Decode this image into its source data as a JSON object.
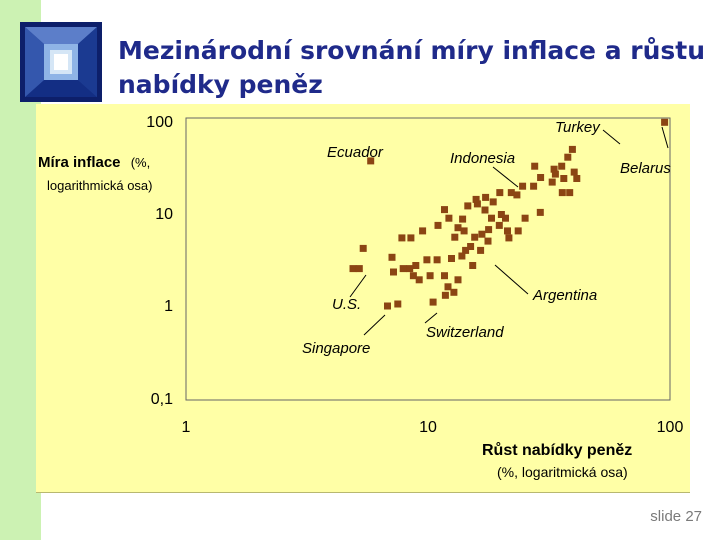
{
  "slide": {
    "title_line1": "Mezinárodní srovnání míry inflace a růstu",
    "title_line2": "nabídky peněz",
    "slide_number": "slide 27",
    "colors": {
      "title": "#1f2a8a",
      "left_strip": "#ccf2b3",
      "plot_background": "#ffffa6",
      "marker": "#8b4513"
    }
  },
  "chart_data": {
    "type": "scatter",
    "x_scale": "log",
    "y_scale": "log",
    "xlim": [
      1,
      100
    ],
    "ylim": [
      0.1,
      100
    ],
    "x_ticks": [
      "1",
      "10",
      "100"
    ],
    "y_ticks": [
      "100",
      "10",
      "1",
      "0,1"
    ],
    "ylabel_bold": "Míra inflace",
    "ylabel_rest_1": "(%,",
    "ylabel_rest_2": "logarithmická osa)",
    "xlabel_bold": "Růst nabídky peněz",
    "xlabel_rest": "(%, logaritmická osa)",
    "grid": false,
    "annotations": [
      {
        "label": "Turkey",
        "x": 95,
        "y": 90
      },
      {
        "label": "Ecuador",
        "x": 5.8,
        "y": 35
      },
      {
        "label": "Indonesia",
        "x": 17.5,
        "y": 20
      },
      {
        "label": "Belarus",
        "x": 95,
        "y": 90
      },
      {
        "label": "Argentina",
        "x": 13,
        "y": 2.2
      },
      {
        "label": "U.S.",
        "x": 5.5,
        "y": 2.5
      },
      {
        "label": "Singapore",
        "x": 7.5,
        "y": 1.0
      },
      {
        "label": "Switzerland",
        "x": 10.5,
        "y": 1.1
      }
    ],
    "points": [
      [
        95,
        90
      ],
      [
        5.8,
        35
      ],
      [
        4.9,
        2.5
      ],
      [
        5.2,
        2.5
      ],
      [
        5.4,
        4.1
      ],
      [
        7.5,
        1.05
      ],
      [
        10.5,
        1.1
      ],
      [
        6.8,
        1.0
      ],
      [
        7.8,
        5.3
      ],
      [
        8.5,
        5.3
      ],
      [
        9.5,
        6.3
      ],
      [
        11,
        7.2
      ],
      [
        12.2,
        8.6
      ],
      [
        13.3,
        6.8
      ],
      [
        14.1,
        6.3
      ],
      [
        15.6,
        5.4
      ],
      [
        16.7,
        5.8
      ],
      [
        17.7,
        4.9
      ],
      [
        15,
        4.3
      ],
      [
        14.3,
        3.9
      ],
      [
        13.8,
        3.4
      ],
      [
        12.5,
        3.2
      ],
      [
        10.9,
        3.1
      ],
      [
        9.9,
        3.1
      ],
      [
        8.9,
        2.7
      ],
      [
        8.4,
        2.5
      ],
      [
        8.7,
        2.1
      ],
      [
        9.2,
        1.9
      ],
      [
        10.2,
        2.1
      ],
      [
        11.7,
        2.1
      ],
      [
        13.3,
        1.9
      ],
      [
        12.1,
        1.6
      ],
      [
        12.8,
        1.4
      ],
      [
        11.8,
        1.3
      ],
      [
        7.1,
        3.3
      ],
      [
        7.9,
        2.5
      ],
      [
        7.2,
        2.3
      ],
      [
        15.3,
        2.7
      ],
      [
        16.5,
        3.9
      ],
      [
        18.3,
        8.6
      ],
      [
        19.7,
        7.2
      ],
      [
        20.9,
        8.6
      ],
      [
        21.6,
        5.3
      ],
      [
        23.6,
        6.3
      ],
      [
        25.2,
        8.6
      ],
      [
        29.1,
        9.9
      ],
      [
        20.1,
        9.4
      ],
      [
        17.2,
        10.5
      ],
      [
        16,
        12.2
      ],
      [
        14.6,
        11.6
      ],
      [
        15.8,
        13.6
      ],
      [
        17.3,
        14.3
      ],
      [
        18.6,
        12.8
      ],
      [
        19.8,
        16.1
      ],
      [
        22.1,
        16.1
      ],
      [
        23.3,
        15.2
      ],
      [
        24.6,
        18.8
      ],
      [
        27.3,
        18.8
      ],
      [
        32.6,
        20.8
      ],
      [
        33.2,
        28.5
      ],
      [
        35.7,
        30.7
      ],
      [
        36.4,
        22.7
      ],
      [
        35.9,
        16.1
      ],
      [
        29.2,
        23.3
      ],
      [
        27.6,
        30.7
      ],
      [
        33.6,
        25.3
      ],
      [
        37.8,
        38.3
      ],
      [
        41.2,
        22.7
      ],
      [
        40.2,
        26.6
      ],
      [
        39.5,
        46.3
      ],
      [
        38.5,
        16.1
      ],
      [
        12.9,
        5.4
      ],
      [
        11.7,
        10.6
      ],
      [
        13.9,
        8.4
      ],
      [
        17.8,
        6.5
      ],
      [
        21.3,
        6.3
      ]
    ]
  }
}
